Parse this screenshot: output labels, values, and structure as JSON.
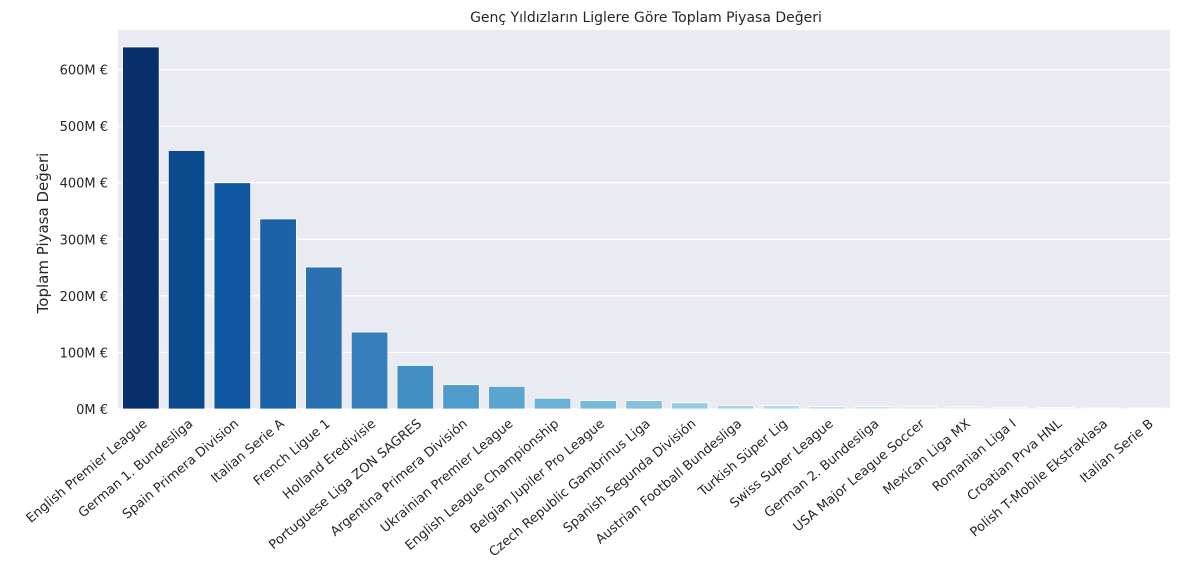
{
  "chart_data": {
    "type": "bar",
    "title": "Genç Yıldızların Liglere Göre Toplam Piyasa Değeri",
    "xlabel": "",
    "ylabel": "Toplam Piyasa Değeri",
    "ylim": [
      0,
      670
    ],
    "yticks": [
      0,
      100,
      200,
      300,
      400,
      500,
      600
    ],
    "ytick_labels": [
      "0M €",
      "100M €",
      "200M €",
      "300M €",
      "400M €",
      "500M €",
      "600M €"
    ],
    "grid": true,
    "legend": "none",
    "categories": [
      "English Premier League",
      "German 1. Bundesliga",
      "Spain Primera Division",
      "Italian Serie A",
      "French Ligue 1",
      "Holland Eredivisie",
      "Portuguese Liga ZON SAGRES",
      "Argentina Primera División",
      "Ukrainian Premier League",
      "English League Championship",
      "Belgian Jupiler Pro League",
      "Czech Republic Gambrinus Liga",
      "Spanish Segunda División",
      "Austrian Football Bundesliga",
      "Turkish Süper Lig",
      "Swiss Super League",
      "German 2. Bundesliga",
      "USA Major League Soccer",
      "Mexican Liga MX",
      "Romanian Liga I",
      "Croatian Prva HNL",
      "Polish T-Mobile Ekstraklasa",
      "Italian Serie B"
    ],
    "values": [
      640,
      457,
      400,
      336,
      251,
      136,
      77,
      43,
      40,
      19,
      15,
      15,
      11,
      6,
      6,
      4.5,
      4.5,
      4,
      4,
      3,
      2.5,
      2,
      2
    ],
    "colors": [
      "#08306b",
      "#0b4a8c",
      "#0f56a0",
      "#1c62a8",
      "#2a71b2",
      "#3580bc",
      "#4290c5",
      "#4e9ccc",
      "#5aa6d1",
      "#68b0d6",
      "#77badb",
      "#85c2de",
      "#95cbe3",
      "#a4d3e7",
      "#b2daeb",
      "#bfe0ef",
      "#cbe5f2",
      "#d5eaf5",
      "#deeef8",
      "#e6f2fa",
      "#ecf5fb",
      "#f1f7fc",
      "#f5fafd"
    ],
    "axis_color": "#eaeaf2"
  }
}
